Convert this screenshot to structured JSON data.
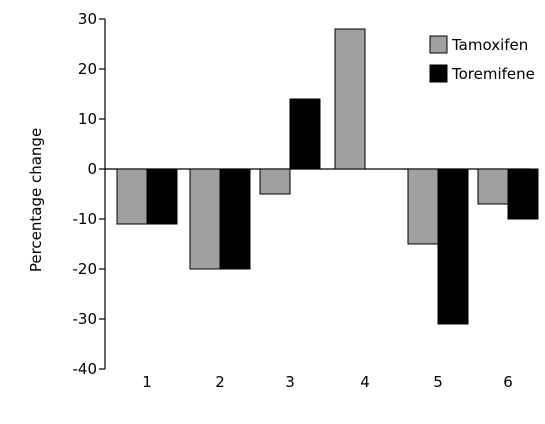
{
  "chart_data": {
    "type": "bar",
    "title": "",
    "xlabel": "",
    "ylabel": "Percentage change",
    "categories": [
      "1",
      "2",
      "3",
      "4",
      "5",
      "6"
    ],
    "series": [
      {
        "name": "Tamoxifen",
        "color": "#a0a0a0",
        "values": [
          -11,
          -20,
          -5,
          28,
          -15,
          -7
        ]
      },
      {
        "name": "Toremifene",
        "color": "#000000",
        "values": [
          -11,
          -20,
          14,
          null,
          -31,
          -10
        ]
      }
    ],
    "ylim": [
      -40,
      30
    ],
    "yticks": [
      "30",
      "20",
      "10",
      "0",
      "-10",
      "-20",
      "-30",
      "-40"
    ],
    "grid": false,
    "legend_position": "top-right"
  }
}
